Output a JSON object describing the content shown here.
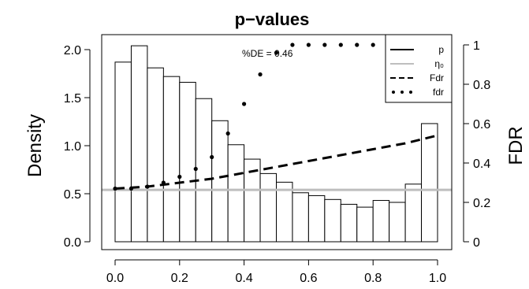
{
  "chart_data": {
    "type": "bar",
    "title": "p−values",
    "xlabel": "",
    "ylabel": "Density",
    "y2label": "FDR",
    "annotation": "%DE = 0.46",
    "xlim": [
      0,
      1
    ],
    "ylim": [
      0,
      2.1
    ],
    "y2lim": [
      0,
      1
    ],
    "x_ticks": [
      "0.0",
      "0.2",
      "0.4",
      "0.6",
      "0.8",
      "1.0"
    ],
    "y_ticks": [
      "0.0",
      "0.5",
      "1.0",
      "1.5",
      "2.0"
    ],
    "y2_ticks": [
      "0",
      "0.2",
      "0.4",
      "0.6",
      "0.8",
      "1"
    ],
    "histogram": {
      "bin_width": 0.05,
      "bin_starts": [
        0,
        0.05,
        0.1,
        0.15,
        0.2,
        0.25,
        0.3,
        0.35,
        0.4,
        0.45,
        0.5,
        0.55,
        0.6,
        0.65,
        0.7,
        0.75,
        0.8,
        0.85,
        0.9,
        0.95
      ],
      "density": [
        1.87,
        2.04,
        1.81,
        1.72,
        1.66,
        1.49,
        1.26,
        1.01,
        0.86,
        0.71,
        0.62,
        0.51,
        0.48,
        0.44,
        0.39,
        0.36,
        0.43,
        0.41,
        0.6,
        1.23
      ]
    },
    "series": [
      {
        "name": "η₀",
        "type": "hline",
        "axis": "left",
        "value": 0.54,
        "color": "#bebebe"
      },
      {
        "name": "Fdr",
        "type": "dashed",
        "axis": "right",
        "x": [
          0,
          0.1,
          0.2,
          0.3,
          0.4,
          0.5,
          0.6,
          0.7,
          0.8,
          0.9,
          1.0
        ],
        "y": [
          0.27,
          0.28,
          0.3,
          0.32,
          0.35,
          0.38,
          0.41,
          0.44,
          0.47,
          0.5,
          0.54
        ]
      },
      {
        "name": "fdr",
        "type": "dotted",
        "axis": "right",
        "x": [
          0,
          0.05,
          0.1,
          0.15,
          0.2,
          0.25,
          0.3,
          0.35,
          0.4,
          0.45,
          0.5,
          0.55,
          0.6,
          0.65,
          0.7,
          0.75,
          0.8,
          0.85,
          0.9,
          0.95
        ],
        "y": [
          0.27,
          0.27,
          0.28,
          0.3,
          0.33,
          0.37,
          0.43,
          0.55,
          0.7,
          0.85,
          0.96,
          1.0,
          1.0,
          1.0,
          1.0,
          1.0,
          1.0,
          1.0,
          1.0,
          1.0
        ]
      }
    ],
    "legend": {
      "position": "top-right",
      "entries": [
        {
          "label": "p",
          "style": "solid",
          "color": "#000000"
        },
        {
          "label": "η₀",
          "style": "solid",
          "color": "#bebebe"
        },
        {
          "label": "Fdr",
          "style": "dashed",
          "color": "#000000"
        },
        {
          "label": "fdr",
          "style": "dotted",
          "color": "#000000"
        }
      ]
    }
  }
}
